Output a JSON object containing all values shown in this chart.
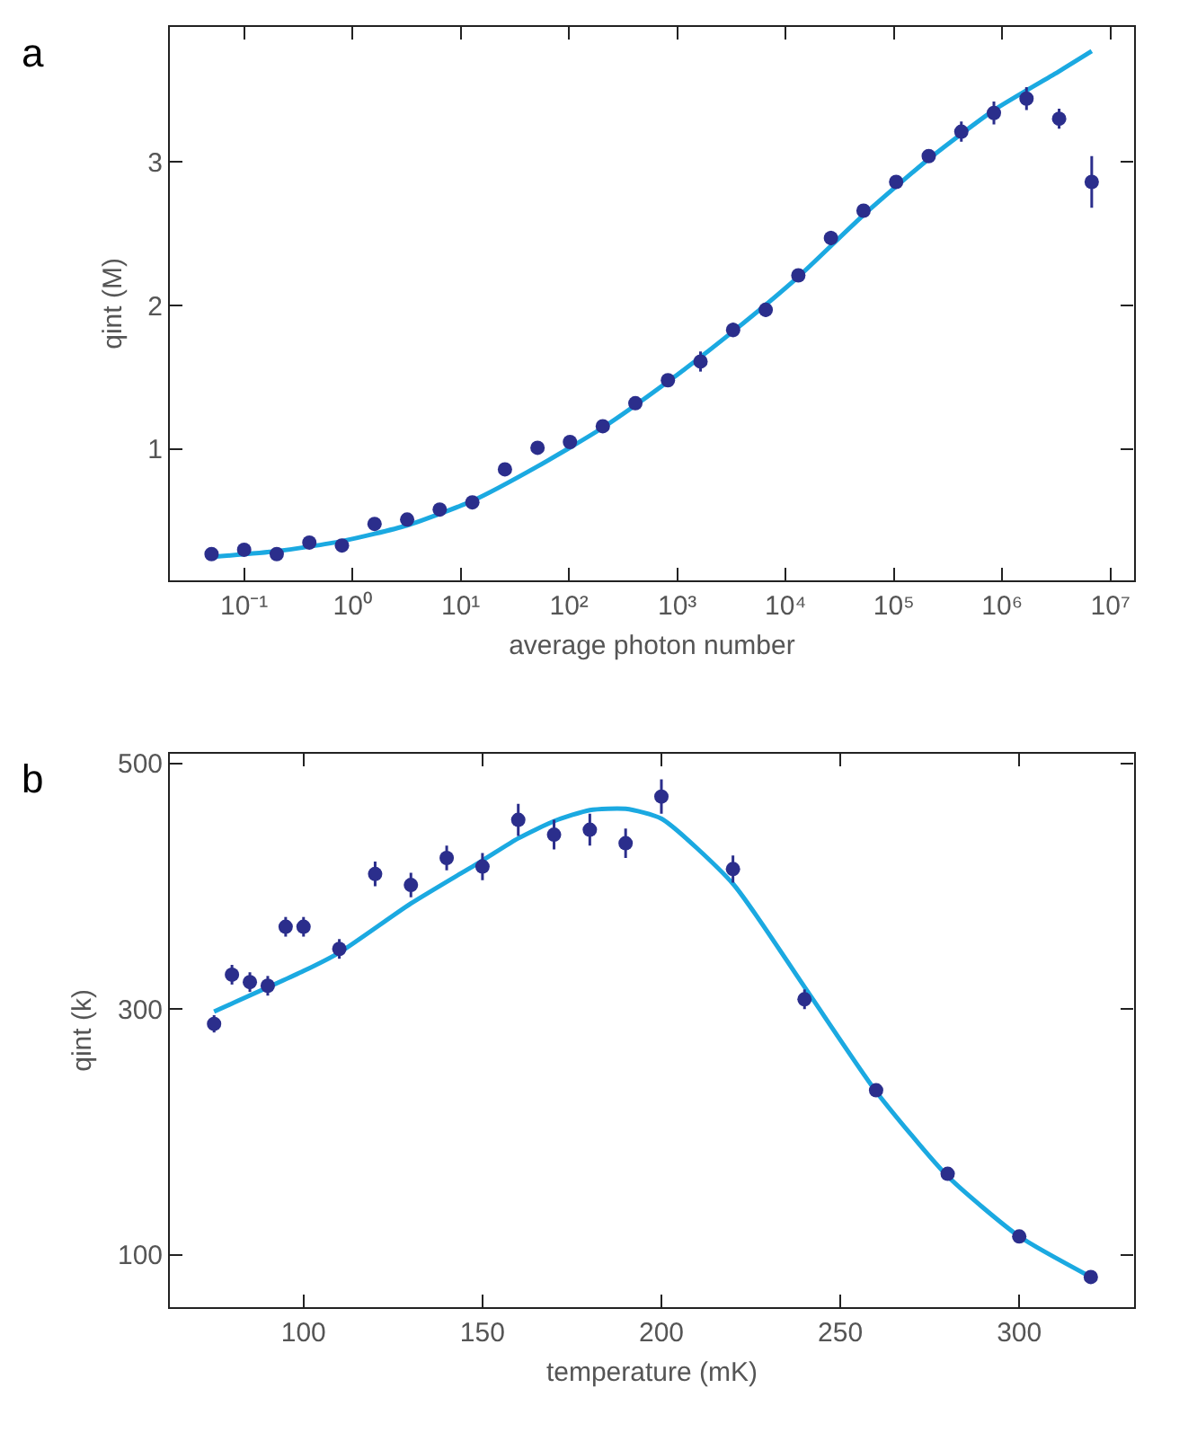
{
  "chart_data": [
    {
      "type": "scatter",
      "title": "a",
      "xlabel": "average photon number",
      "ylabel": "qint (M)",
      "log": "x",
      "xlim": [
        0.0207,
        16400000
      ],
      "ylim": [
        0.087,
        3.94
      ],
      "xticks": [
        {
          "value": 0.1,
          "label": "10⁻¹"
        },
        {
          "value": 1,
          "label": "10⁰"
        },
        {
          "value": 10,
          "label": "10¹"
        },
        {
          "value": 100,
          "label": "10²"
        },
        {
          "value": 1000,
          "label": "10³"
        },
        {
          "value": 10000,
          "label": "10⁴"
        },
        {
          "value": 100000,
          "label": "10⁵"
        },
        {
          "value": 1000000,
          "label": "10⁶"
        },
        {
          "value": 10000000,
          "label": "10⁷"
        }
      ],
      "yticks": [
        1,
        2,
        3
      ],
      "series": [
        {
          "type": "line",
          "color": "#1ba9e1",
          "marker": "none",
          "line_style": "solid",
          "x": [
            0.05,
            0.2,
            0.8,
            3.2,
            12.8,
            51.2,
            205,
            819,
            3277,
            13107,
            52429,
            209715,
            838861,
            3355443,
            6710886
          ],
          "values": [
            0.25,
            0.29,
            0.36,
            0.47,
            0.64,
            0.88,
            1.15,
            1.47,
            1.82,
            2.2,
            2.63,
            3.02,
            3.36,
            3.63,
            3.77
          ]
        },
        {
          "color": "#2b2e8c",
          "marker": "circle",
          "x": [
            0.05,
            0.1,
            0.2,
            0.4,
            0.8,
            1.6,
            3.2,
            6.4,
            12.8,
            25.6,
            51.2,
            102,
            205,
            410,
            819,
            1638,
            3277,
            6554,
            13107,
            26214,
            52429,
            104858,
            209715,
            419430,
            838861,
            1677722,
            3355443,
            6710886
          ],
          "values": [
            0.27,
            0.3,
            0.27,
            0.35,
            0.33,
            0.48,
            0.51,
            0.58,
            0.63,
            0.86,
            1.01,
            1.05,
            1.16,
            1.32,
            1.48,
            1.61,
            1.83,
            1.97,
            2.21,
            2.47,
            2.66,
            2.86,
            3.04,
            3.21,
            3.34,
            3.44,
            3.3,
            2.86
          ],
          "errors": [
            null,
            null,
            null,
            null,
            null,
            null,
            null,
            null,
            null,
            null,
            null,
            null,
            null,
            null,
            0.03,
            0.07,
            0.05,
            0.05,
            0.04,
            0.05,
            0.03,
            0.03,
            0.04,
            0.07,
            0.08,
            0.08,
            0.07,
            0.18
          ]
        }
      ]
    },
    {
      "type": "scatter",
      "title": "b",
      "xlabel": "temperature (mK)",
      "ylabel": "qint (k)",
      "xlim": [
        62.7,
        332
      ],
      "ylim": [
        57.5,
        508
      ],
      "xticks": [
        100,
        150,
        200,
        250,
        300
      ],
      "yticks": [
        100,
        300,
        500
      ],
      "series": [
        {
          "type": "line",
          "color": "#1ba9e1",
          "marker": "none",
          "line_style": "solid",
          "x": [
            75,
            100,
            110,
            130,
            150,
            160,
            170,
            180,
            190,
            200,
            220,
            240,
            260,
            280,
            300,
            320
          ],
          "values": [
            298,
            331,
            346,
            386,
            421,
            439,
            453,
            462,
            463,
            455,
            402,
            318,
            233,
            164,
            115,
            82
          ]
        },
        {
          "color": "#2b2e8c",
          "marker": "circle",
          "x": [
            75,
            80,
            85,
            90,
            95,
            100,
            110,
            120,
            130,
            140,
            150,
            160,
            170,
            180,
            190,
            200,
            220,
            240,
            260,
            280,
            300,
            320
          ],
          "values": [
            288,
            328,
            322,
            319,
            367,
            367,
            349,
            410,
            401,
            423,
            416,
            454,
            442,
            446,
            435,
            473,
            414,
            308,
            234,
            166,
            115,
            82
          ],
          "errors": [
            7,
            8,
            8,
            8,
            8,
            8,
            8,
            10,
            10,
            10,
            11,
            13,
            12,
            13,
            12,
            14,
            11,
            8,
            null,
            null,
            null,
            null
          ]
        }
      ]
    }
  ]
}
